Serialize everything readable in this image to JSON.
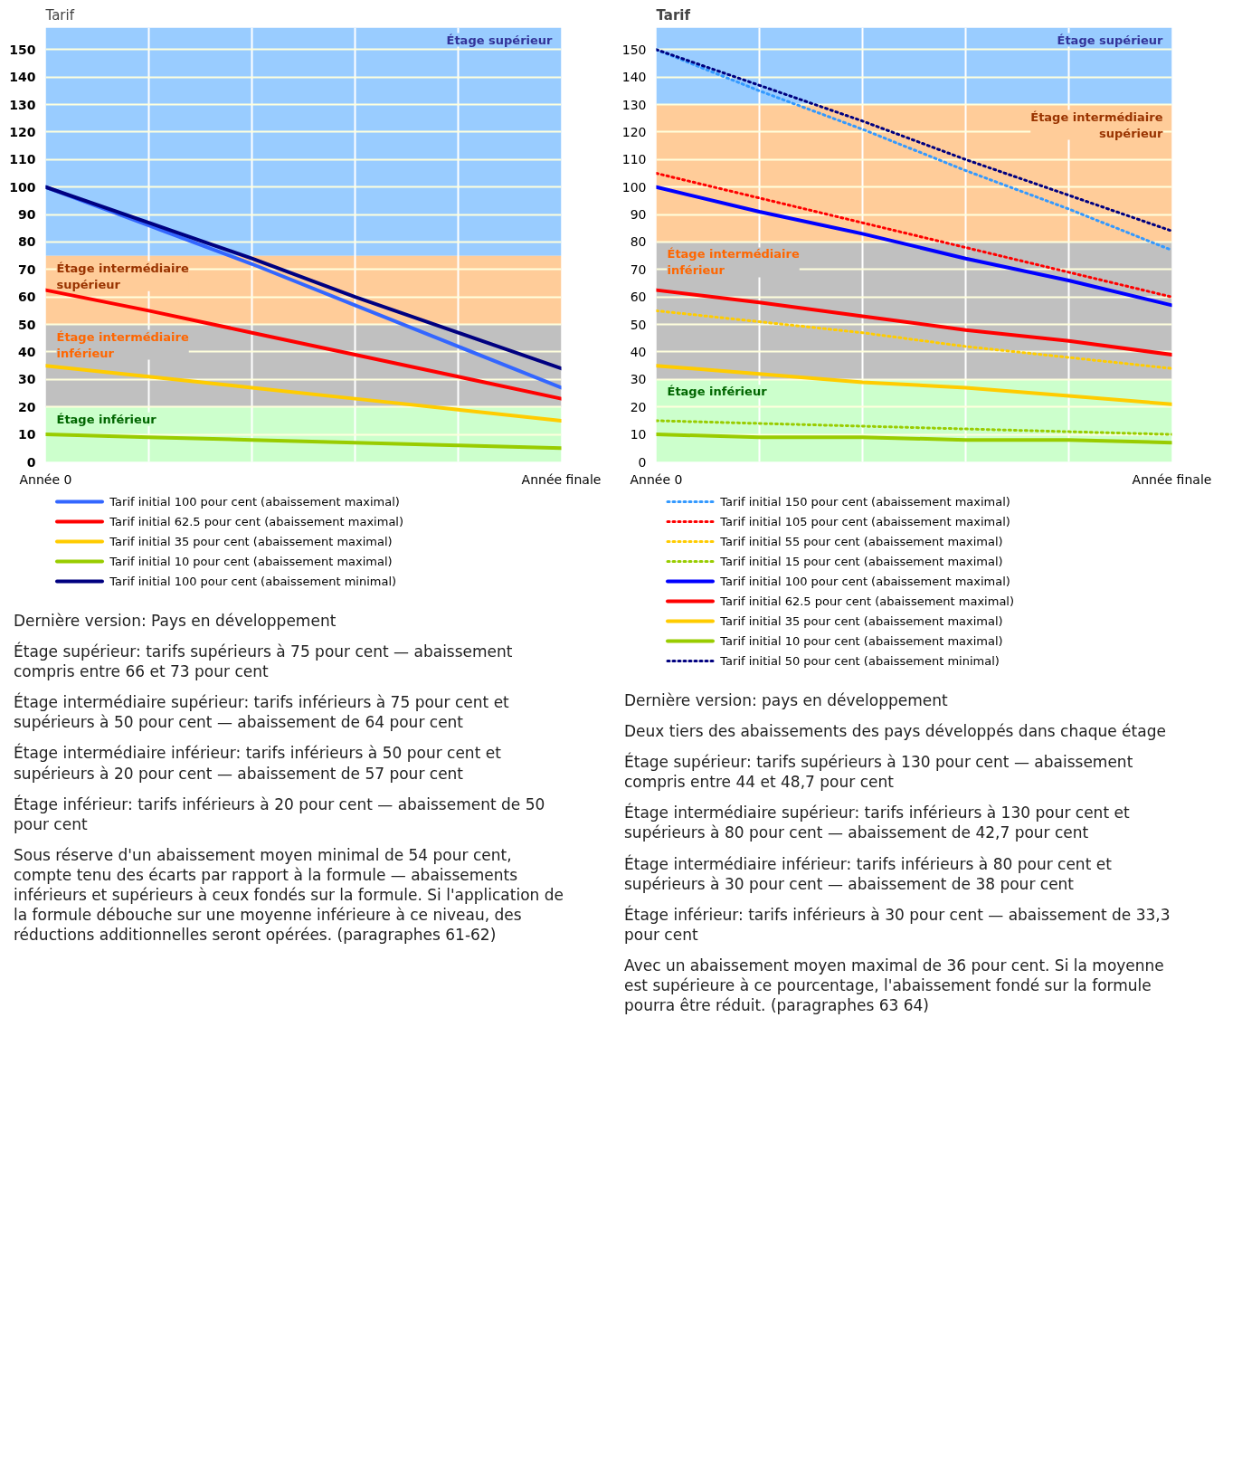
{
  "chart_data": [
    {
      "type": "line",
      "ylabel": "Tarif",
      "categories": [
        "Année 0",
        null,
        null,
        null,
        null,
        "Année finale"
      ],
      "ylim": [
        0,
        158
      ],
      "yticks": [
        0,
        10,
        20,
        30,
        40,
        50,
        60,
        70,
        80,
        90,
        100,
        110,
        120,
        130,
        140,
        150
      ],
      "grid": true,
      "legend": "bottom",
      "bands": [
        {
          "axis": "y",
          "from": 75,
          "to": 158,
          "label": "Étage supérieur",
          "color": "#99ccff"
        },
        {
          "axis": "y",
          "from": 50,
          "to": 75,
          "label": "Étage intermédiaire supérieur",
          "color": "#ffcc99"
        },
        {
          "axis": "y",
          "from": 20,
          "to": 50,
          "label": "Étage intermédiaire inférieur",
          "color": "#c0c0c0"
        },
        {
          "axis": "y",
          "from": 0,
          "to": 20,
          "label": "Étage inférieur",
          "color": "#ccffcc"
        }
      ],
      "series": [
        {
          "name": "Tarif initial 100 pour cent (abaissement maximal)",
          "color": "#3366ff",
          "values": [
            100,
            86,
            72,
            57,
            42,
            27
          ]
        },
        {
          "name": "Tarif initial 62.5 pour cent (abaissement maximal)",
          "color": "#ff0000",
          "values": [
            62.5,
            55,
            47,
            39,
            31,
            23
          ]
        },
        {
          "name": "Tarif initial 35 pour cent (abaissement maximal)",
          "color": "#ffcc00",
          "values": [
            35,
            31,
            27,
            23,
            19,
            15
          ]
        },
        {
          "name": "Tarif initial 10 pour cent (abaissement maximal)",
          "color": "#99cc00",
          "values": [
            10,
            9,
            8,
            7,
            6,
            5
          ]
        },
        {
          "name": "Tarif initial 100 pour cent (abaissement minimal)",
          "color": "#000080",
          "values": [
            100,
            87,
            74,
            60,
            47,
            34
          ]
        }
      ],
      "annotations": [
        "Dernière version: Pays en développement",
        "Étage supérieur: tarifs supérieurs à 75 pour cent — abaissement compris entre 66 et 73 pour cent",
        "Étage intermédiaire supérieur: tarifs inférieurs à 75 pour cent et supérieurs à 50 pour cent — abaissement de 64 pour cent",
        "Étage intermédiaire inférieur: tarifs inférieurs à 50 pour cent et supérieurs à 20 pour cent — abaissement de 57 pour cent",
        "Étage inférieur: tarifs inférieurs à 20 pour cent — abaissement de 50 pour cent",
        "Sous réserve d'un abaissement moyen minimal de 54 pour cent, compte tenu des écarts par rapport à la formule — abaissements inférieurs et supérieurs à ceux fondés sur la formule. Si l'application de la formule débouche sur une moyenne inférieure à ce niveau, des réductions additionnelles seront opérées. (paragraphes 61-62)"
      ]
    },
    {
      "type": "line",
      "ylabel": "Tarif",
      "categories": [
        "Année 0",
        null,
        null,
        null,
        null,
        "Année finale"
      ],
      "ylim": [
        0,
        158
      ],
      "yticks": [
        0,
        10,
        20,
        30,
        40,
        50,
        60,
        70,
        80,
        90,
        100,
        110,
        120,
        130,
        140,
        150
      ],
      "grid": true,
      "legend": "bottom",
      "bands": [
        {
          "axis": "y",
          "from": 130,
          "to": 158,
          "label": "Étage supérieur",
          "color": "#99ccff"
        },
        {
          "axis": "y",
          "from": 80,
          "to": 130,
          "label": "Étage intermédiaire supérieur",
          "color": "#ffcc99"
        },
        {
          "axis": "y",
          "from": 30,
          "to": 80,
          "label": "Étage intermédiaire inférieur",
          "color": "#c0c0c0"
        },
        {
          "axis": "y",
          "from": 0,
          "to": 30,
          "label": "Étage inférieur",
          "color": "#ccffcc"
        }
      ],
      "series": [
        {
          "name": "Tarif initial 150 pour cent (abaissement maximal)",
          "color": "#3399ff",
          "line_style": "dotted",
          "values": [
            150,
            135,
            121,
            106,
            92,
            77
          ]
        },
        {
          "name": "Tarif initial 105 pour cent (abaissement maximal)",
          "color": "#ff0000",
          "line_style": "dotted",
          "values": [
            105,
            96,
            87,
            78,
            69,
            60
          ]
        },
        {
          "name": "Tarif initial 55 pour cent (abaissement maximal)",
          "color": "#ffcc00",
          "line_style": "dotted",
          "values": [
            55,
            51,
            47,
            42,
            38,
            34
          ]
        },
        {
          "name": "Tarif initial 15 pour cent (abaissement maximal)",
          "color": "#99cc00",
          "line_style": "dotted",
          "values": [
            15,
            14,
            13,
            12,
            11,
            10
          ]
        },
        {
          "name": "Tarif initial 100 pour cent (abaissement maximal)",
          "color": "#0000ff",
          "values": [
            100,
            91,
            83,
            74,
            66,
            57
          ]
        },
        {
          "name": "Tarif initial 62.5 pour cent (abaissement maximal)",
          "color": "#ff0000",
          "values": [
            62.5,
            58,
            53,
            48,
            44,
            39
          ]
        },
        {
          "name": "Tarif initial 35 pour cent (abaissement maximal)",
          "color": "#ffcc00",
          "values": [
            35,
            32,
            29,
            27,
            24,
            21
          ]
        },
        {
          "name": "Tarif initial 10 pour cent (abaissement maximal)",
          "color": "#99cc00",
          "values": [
            10,
            9,
            9,
            8,
            8,
            7
          ]
        },
        {
          "name": "Tarif initial 50 pour cent (abaissement minimal)",
          "color": "#000080",
          "line_style": "dotted",
          "values": [
            150,
            137,
            124,
            110,
            97,
            84
          ]
        }
      ],
      "annotations": [
        "Dernière version: pays en développement",
        "Deux tiers des abaissements des pays développés dans chaque étage",
        "Étage supérieur: tarifs supérieurs à 130 pour cent — abaissement compris entre 44 et 48,7 pour cent",
        "Étage intermédiaire supérieur: tarifs inférieurs à 130 pour cent et supérieurs à 80 pour cent — abaissement de 42,7 pour cent",
        "Étage intermédiaire inférieur: tarifs inférieurs à 80 pour cent et supérieurs à 30 pour cent — abaissement de 38 pour cent",
        "Étage inférieur: tarifs inférieurs à 30 pour cent — abaissement de 33,3 pour cent",
        "Avec un abaissement moyen maximal de 36 pour cent. Si la moyenne est supérieure à ce pourcentage, l'abaissement fondé sur la formule pourra être réduit. (paragraphes 63 64)"
      ]
    }
  ]
}
